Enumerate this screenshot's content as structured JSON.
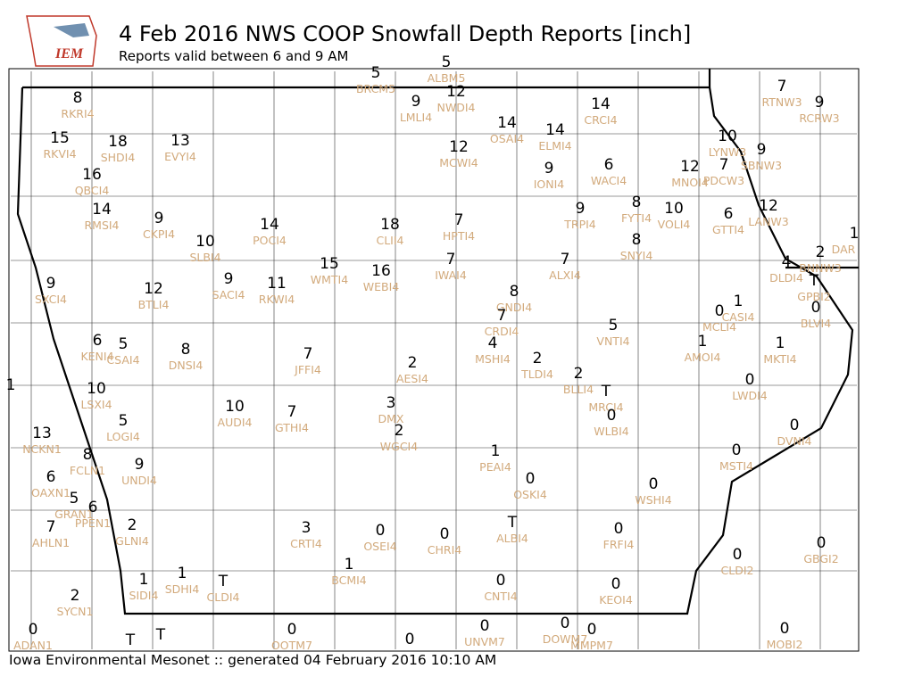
{
  "header": {
    "logo_text": "IEM",
    "title": "4 Feb 2016 NWS COOP Snowfall Depth Reports [inch]",
    "subtitle": "Reports valid between 6 and 9 AM"
  },
  "footer": "Iowa Environmental Mesonet :: generated 04 February 2016 10:10 AM",
  "stations": [
    {
      "value": 8,
      "id": "RKRI4"
    },
    {
      "value": 5,
      "id": "BRCM5"
    },
    {
      "value": 5,
      "id": "ALBM5"
    },
    {
      "value": 9,
      "id": "LMLI4"
    },
    {
      "value": 12,
      "id": "NWDI4"
    },
    {
      "value": 14,
      "id": "CRCI4"
    },
    {
      "value": 7,
      "id": "RTNW3"
    },
    {
      "value": 9,
      "id": "RCRW3"
    },
    {
      "value": 15,
      "id": "RKVI4"
    },
    {
      "value": 18,
      "id": "SHDI4"
    },
    {
      "value": 13,
      "id": "EVYI4"
    },
    {
      "value": 14,
      "id": "OSAI4"
    },
    {
      "value": 14,
      "id": "ELMI4"
    },
    {
      "value": 10,
      "id": "LYNW3"
    },
    {
      "value": 9,
      "id": "SBNW3"
    },
    {
      "value": 12,
      "id": "MCWI4"
    },
    {
      "value": 16,
      "id": "QBCI4"
    },
    {
      "value": 9,
      "id": "IONI4"
    },
    {
      "value": 6,
      "id": "WACI4"
    },
    {
      "value": 12,
      "id": "MNOI4"
    },
    {
      "value": 7,
      "id": "PDCW3"
    },
    {
      "value": 14,
      "id": "RMSI4"
    },
    {
      "value": 9,
      "id": "CKPI4"
    },
    {
      "value": 14,
      "id": "POCI4"
    },
    {
      "value": 18,
      "id": "CLII4"
    },
    {
      "value": 7,
      "id": "HPTI4"
    },
    {
      "value": 9,
      "id": "TRPI4"
    },
    {
      "value": 8,
      "id": "FYTI4"
    },
    {
      "value": 10,
      "id": "VOLI4"
    },
    {
      "value": 6,
      "id": "GTTI4"
    },
    {
      "value": 12,
      "id": "LANW3"
    },
    {
      "value": 10,
      "id": "SLBI4"
    },
    {
      "value": 1,
      "id": "DAR"
    },
    {
      "value": 8,
      "id": "SNYI4"
    },
    {
      "value": 2,
      "id": "BNNW3"
    },
    {
      "value": 4,
      "id": "DLDI4"
    },
    {
      "value": 9,
      "id": "SXCI4"
    },
    {
      "value": 15,
      "id": "WMTI4"
    },
    {
      "value": 16,
      "id": "WEBI4"
    },
    {
      "value": 7,
      "id": "IWAI4"
    },
    {
      "value": 7,
      "id": "ALXI4"
    },
    {
      "value": 12,
      "id": "BTLI4"
    },
    {
      "value": 9,
      "id": "SACI4"
    },
    {
      "value": 11,
      "id": "RKWI4"
    },
    {
      "value": "T",
      "id": "GPBI2"
    },
    {
      "value": 8,
      "id": "GNDI4"
    },
    {
      "value": 1,
      "id": "CASI4"
    },
    {
      "value": 0,
      "id": "MCLI4"
    },
    {
      "value": 0,
      "id": "BLVI4"
    },
    {
      "value": 7,
      "id": "CRDI4"
    },
    {
      "value": 5,
      "id": "VNTI4"
    },
    {
      "value": 6,
      "id": "KENI4"
    },
    {
      "value": 5,
      "id": "CSAI4"
    },
    {
      "value": 8,
      "id": "DNSI4"
    },
    {
      "value": 7,
      "id": "JFFI4"
    },
    {
      "value": 4,
      "id": "MSHI4"
    },
    {
      "value": 1,
      "id": "AMOI4"
    },
    {
      "value": 1,
      "id": "MKTI4"
    },
    {
      "value": 2,
      "id": "AESI4"
    },
    {
      "value": 2,
      "id": "TLDI4"
    },
    {
      "value": 1
    },
    {
      "value": 10,
      "id": "LSXI4"
    },
    {
      "value": 2,
      "id": "BLLI4"
    },
    {
      "value": "T",
      "id": "MRCI4"
    },
    {
      "value": 0,
      "id": "LWDI4"
    },
    {
      "value": 3,
      "id": "DMX"
    },
    {
      "value": 10,
      "id": "AUDI4"
    },
    {
      "value": 7,
      "id": "GTHI4"
    },
    {
      "value": 5,
      "id": "LOGI4"
    },
    {
      "value": 0,
      "id": "WLBI4"
    },
    {
      "value": 2,
      "id": "WGCI4"
    },
    {
      "value": 0,
      "id": "DVNI4"
    },
    {
      "value": 13,
      "id": "NCKN1"
    },
    {
      "value": 8,
      "id": "FCLN1"
    },
    {
      "value": 9,
      "id": "UNDI4"
    },
    {
      "value": 1,
      "id": "PEAI4"
    },
    {
      "value": 0,
      "id": "MSTI4"
    },
    {
      "value": 6,
      "id": "OAXN1"
    },
    {
      "value": 0,
      "id": "OSKI4"
    },
    {
      "value": 0,
      "id": "WSHI4"
    },
    {
      "value": 5,
      "id": "GRAN1"
    },
    {
      "value": 6,
      "id": "PPEN1"
    },
    {
      "value": 7,
      "id": "AHLN1"
    },
    {
      "value": 2,
      "id": "GLNI4"
    },
    {
      "value": 3,
      "id": "CRTI4"
    },
    {
      "value": 0,
      "id": "OSEI4"
    },
    {
      "value": 0,
      "id": "CHRI4"
    },
    {
      "value": "T",
      "id": "ALBI4"
    },
    {
      "value": 0,
      "id": "FRFI4"
    },
    {
      "value": 0,
      "id": "GBGI2"
    },
    {
      "value": 0,
      "id": "CLDI2"
    },
    {
      "value": 1,
      "id": "BCMI4"
    },
    {
      "value": 1,
      "id": "SIDI4"
    },
    {
      "value": 1,
      "id": "SDHI4"
    },
    {
      "value": "T",
      "id": "CLDI4"
    },
    {
      "value": 0,
      "id": "CNTI4"
    },
    {
      "value": 0,
      "id": "KEOI4"
    },
    {
      "value": 2,
      "id": "SYCN1"
    },
    {
      "value": 0,
      "id": "ADAN1"
    },
    {
      "value": "T"
    },
    {
      "value": "T"
    },
    {
      "value": 0,
      "id": "OOTM7"
    },
    {
      "value": 0
    },
    {
      "value": 0,
      "id": "UNVM7"
    },
    {
      "value": 0,
      "id": "DOWM7"
    },
    {
      "value": 0,
      "id": "MMPM7"
    },
    {
      "value": 0,
      "id": "MOBI2"
    }
  ]
}
